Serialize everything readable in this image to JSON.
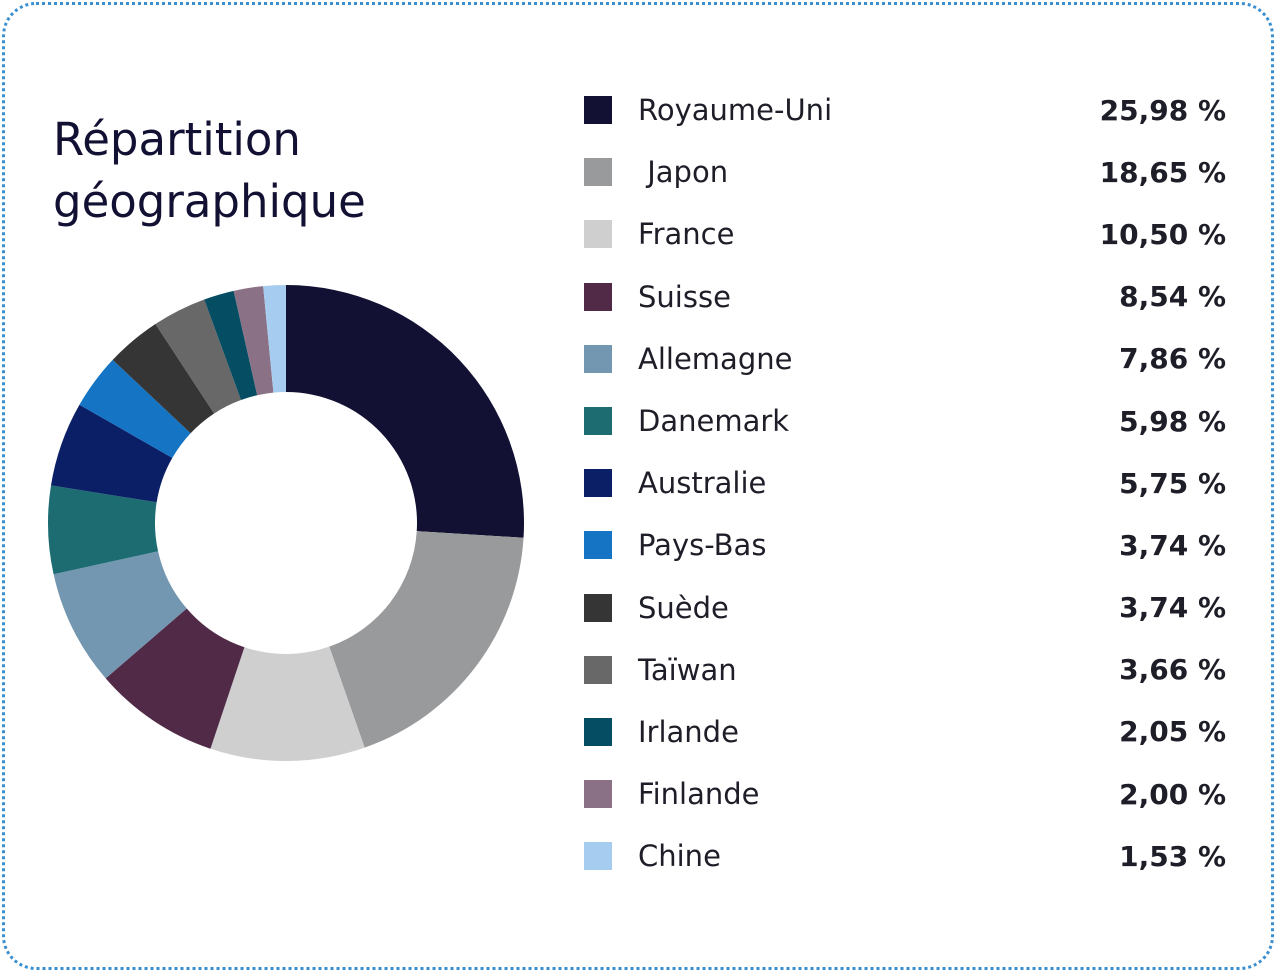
{
  "chart_data": {
    "type": "pie",
    "title_lines": [
      "Répartition",
      "géographique"
    ],
    "categories": [
      "Royaume-Uni",
      " Japon",
      "France",
      "Suisse",
      "Allemagne",
      "Danemark",
      "Australie",
      "Pays-Bas",
      "Suède",
      "Taïwan",
      "Irlande",
      "Finlande",
      "Chine"
    ],
    "values": [
      25.98,
      18.65,
      10.5,
      8.54,
      7.86,
      5.98,
      5.75,
      3.74,
      3.74,
      3.66,
      2.05,
      2.0,
      1.53
    ],
    "value_labels": [
      "25,98 %",
      "18,65 %",
      "10,50 %",
      "8,54 %",
      "7,86 %",
      "5,98 %",
      "5,75 %",
      "3,74 %",
      "3,74 %",
      "3,66 %",
      "2,05 %",
      "2,00 %",
      "1,53 %"
    ],
    "colors": [
      "#121133",
      "#999a9c",
      "#cfcfcf",
      "#512a48",
      "#7397b0",
      "#1d6c72",
      "#0b1f66",
      "#1574c4",
      "#353535",
      "#686868",
      "#044d62",
      "#8b7186",
      "#a6cdf0"
    ],
    "donut": true,
    "legend": "right"
  }
}
